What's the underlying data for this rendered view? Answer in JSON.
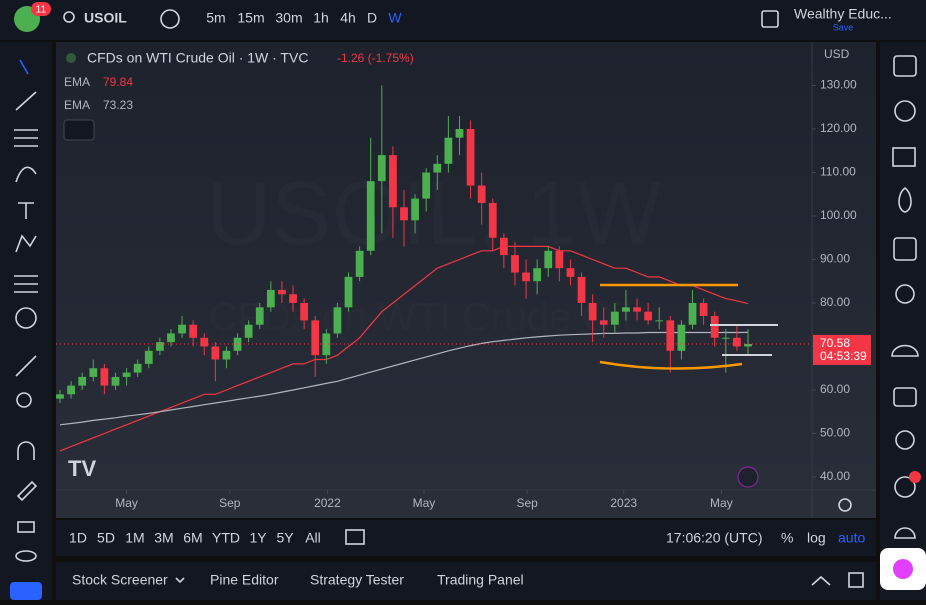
{
  "header": {
    "badge": "11",
    "symbol": "USOIL",
    "intervals": [
      "5m",
      "15m",
      "30m",
      "1h",
      "4h",
      "D",
      "W"
    ],
    "account": "Wealthy Educ...",
    "save": "Save"
  },
  "chart_data": {
    "type": "candlestick",
    "title": "CFDs on WTI Crude Oil · 1W · TVC",
    "change": "-1.26 (-1.75%)",
    "watermark": "USOIL, 1W",
    "watermark_sub": "CFDs on WTI Crude Oil",
    "currency": "USD",
    "countdown": "04:53:39",
    "up_color": "#4caf50",
    "down_color": "#f23645",
    "candles": [
      [
        58,
        60,
        57,
        59
      ],
      [
        59,
        62,
        58,
        61
      ],
      [
        61,
        64,
        60,
        63
      ],
      [
        63,
        67,
        62,
        65
      ],
      [
        65,
        66,
        59,
        61
      ],
      [
        61,
        64,
        60,
        63
      ],
      [
        63,
        65,
        61,
        64
      ],
      [
        64,
        67,
        63,
        66
      ],
      [
        66,
        70,
        65,
        69
      ],
      [
        69,
        72,
        68,
        71
      ],
      [
        71,
        74,
        70,
        73
      ],
      [
        73,
        77,
        72,
        75
      ],
      [
        75,
        76,
        70,
        72
      ],
      [
        72,
        73,
        68,
        70
      ],
      [
        70,
        71,
        62,
        67
      ],
      [
        67,
        70,
        65,
        69
      ],
      [
        69,
        73,
        68,
        72
      ],
      [
        72,
        76,
        71,
        75
      ],
      [
        75,
        80,
        74,
        79
      ],
      [
        79,
        85,
        78,
        83
      ],
      [
        83,
        85,
        80,
        82
      ],
      [
        82,
        84,
        78,
        80
      ],
      [
        80,
        81,
        74,
        76
      ],
      [
        76,
        77,
        63,
        68
      ],
      [
        68,
        74,
        66,
        73
      ],
      [
        73,
        80,
        72,
        79
      ],
      [
        79,
        87,
        78,
        86
      ],
      [
        86,
        93,
        85,
        92
      ],
      [
        92,
        118,
        91,
        108
      ],
      [
        108,
        130,
        96,
        114
      ],
      [
        114,
        116,
        95,
        102
      ],
      [
        102,
        106,
        93,
        99
      ],
      [
        99,
        105,
        96,
        104
      ],
      [
        104,
        111,
        101,
        110
      ],
      [
        110,
        114,
        106,
        112
      ],
      [
        112,
        123,
        110,
        118
      ],
      [
        118,
        123,
        114,
        120
      ],
      [
        120,
        122,
        104,
        107
      ],
      [
        107,
        110,
        98,
        103
      ],
      [
        103,
        104,
        92,
        95
      ],
      [
        95,
        96,
        88,
        91
      ],
      [
        91,
        94,
        84,
        87
      ],
      [
        87,
        90,
        81,
        85
      ],
      [
        85,
        90,
        82,
        88
      ],
      [
        88,
        93,
        86,
        92
      ],
      [
        92,
        93,
        85,
        88
      ],
      [
        88,
        90,
        84,
        86
      ],
      [
        86,
        87,
        77,
        80
      ],
      [
        80,
        82,
        71,
        76
      ],
      [
        76,
        79,
        72,
        75
      ],
      [
        75,
        80,
        73,
        78
      ],
      [
        78,
        83,
        76,
        79
      ],
      [
        79,
        81,
        76,
        78
      ],
      [
        78,
        80,
        75,
        76
      ],
      [
        76,
        79,
        74,
        76
      ],
      [
        76,
        77,
        64,
        69
      ],
      [
        69,
        76,
        67,
        75
      ],
      [
        75,
        83,
        74,
        80
      ],
      [
        80,
        81,
        75,
        77
      ],
      [
        77,
        78,
        70,
        72
      ],
      [
        72,
        74,
        64,
        72
      ],
      [
        72,
        75,
        69,
        70
      ],
      [
        70,
        74,
        68,
        70.58
      ]
    ],
    "series": [
      {
        "name": "EMA",
        "color": "#f23645",
        "values": [
          46,
          47,
          48,
          49,
          50,
          51,
          52,
          53,
          54,
          55,
          56,
          57,
          58,
          59,
          59,
          60,
          61,
          62,
          63,
          64,
          65,
          66,
          66,
          67,
          67,
          68,
          70,
          72,
          75,
          78,
          80,
          82,
          84,
          86,
          88,
          89,
          90,
          91,
          92,
          92,
          93,
          93,
          93,
          93,
          93,
          92,
          92,
          91,
          90,
          89,
          88,
          88,
          87,
          86,
          86,
          85,
          84,
          84,
          83,
          82,
          81,
          80.5,
          79.84
        ]
      },
      {
        "name": "EMA",
        "color": "#b2b5be",
        "values": [
          52,
          52.3,
          52.6,
          53,
          53.3,
          53.6,
          54,
          54.3,
          54.6,
          55,
          55.4,
          55.8,
          56.2,
          56.6,
          57,
          57.4,
          57.8,
          58.2,
          58.6,
          59,
          59.5,
          60,
          60.5,
          61,
          61.5,
          62,
          62.7,
          63.4,
          64.1,
          64.8,
          65.5,
          66.2,
          66.9,
          67.6,
          68.3,
          69,
          69.6,
          70.2,
          70.7,
          71.1,
          71.4,
          71.7,
          72,
          72.2,
          72.4,
          72.6,
          72.7,
          72.8,
          72.9,
          73,
          73,
          73.1,
          73.1,
          73.2,
          73.2,
          73.2,
          73.2,
          73.2,
          73.2,
          73.2,
          73.2,
          73.2,
          73.23
        ]
      }
    ],
    "ylim": [
      37,
      140
    ],
    "yticks": [
      {
        "value": 40,
        "label": "40.00"
      },
      {
        "value": 50,
        "label": "50.00"
      },
      {
        "value": 60,
        "label": "60.00"
      },
      {
        "value": 70,
        "label": "70.00"
      },
      {
        "value": 80,
        "label": "80.00"
      },
      {
        "value": 90,
        "label": "90.00"
      },
      {
        "value": 100,
        "label": "100.00"
      },
      {
        "value": 110,
        "label": "110.00"
      },
      {
        "value": 120,
        "label": "120.00"
      },
      {
        "value": 130,
        "label": "130.00"
      }
    ],
    "xticks": [
      {
        "value": 6,
        "label": "May"
      },
      {
        "value": 15.3,
        "label": "Sep"
      },
      {
        "value": 24.1,
        "label": "2022"
      },
      {
        "value": 32.8,
        "label": "May"
      },
      {
        "value": 42.1,
        "label": "Sep"
      },
      {
        "value": 50.8,
        "label": "2023"
      },
      {
        "value": 59.6,
        "label": "May"
      }
    ]
  },
  "toolbar": {
    "ranges": [
      "1D",
      "5D",
      "1M",
      "3M",
      "6M",
      "YTD",
      "1Y",
      "5Y",
      "All"
    ],
    "clock": "17:06:20 (UTC)",
    "percent": "%",
    "log": "log",
    "auto": "auto"
  },
  "panel": {
    "tabs": [
      "Stock Screener",
      "Pine Editor",
      "Strategy Tester",
      "Trading Panel"
    ]
  }
}
